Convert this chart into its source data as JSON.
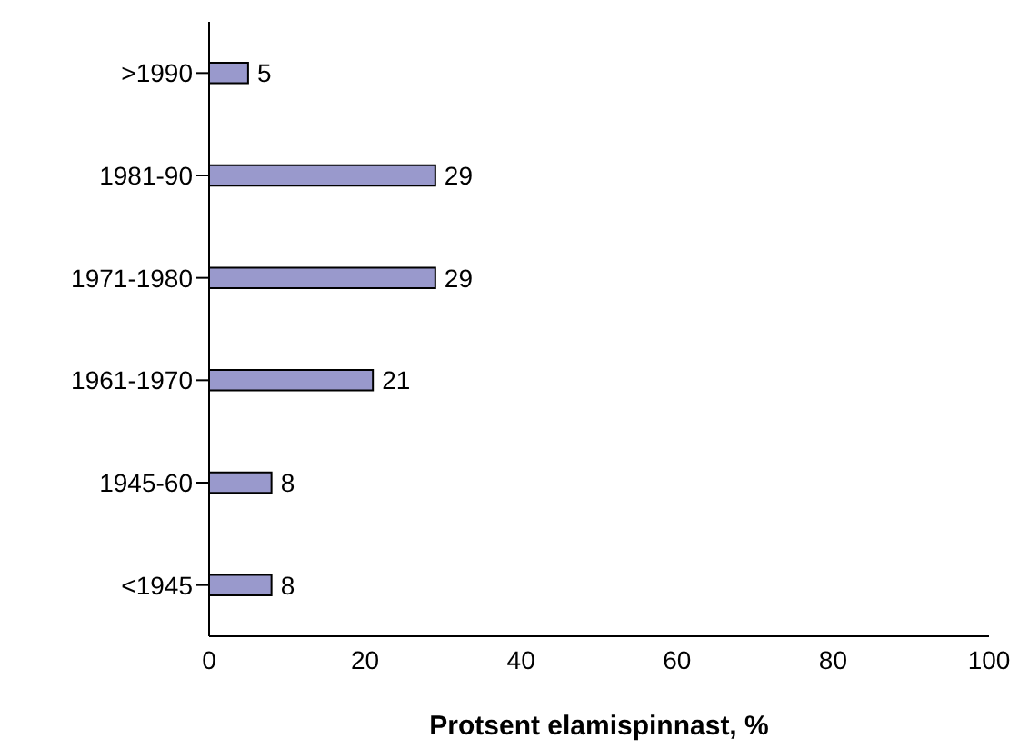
{
  "chart_data": {
    "type": "bar",
    "orientation": "horizontal",
    "xlabel": "Protsent elamispinnast, %",
    "categories": [
      ">1990",
      "1981-90",
      "1971-1980",
      "1961-1970",
      "1945-60",
      "<1945"
    ],
    "values": [
      5,
      29,
      29,
      21,
      8,
      8
    ],
    "color": "#9999cc",
    "xlim": [
      0,
      100
    ],
    "xticks": [
      0,
      20,
      40,
      60,
      80,
      100
    ],
    "grid": false,
    "data_labels": true,
    "legend": false
  }
}
